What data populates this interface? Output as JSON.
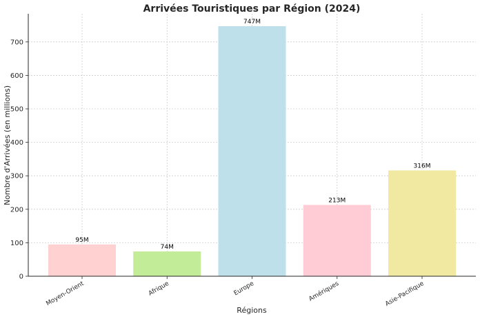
{
  "chart_data": {
    "type": "bar",
    "title": "Arrivées Touristiques par Région (2024)",
    "xlabel": "Régions",
    "ylabel": "Nombre d'Arrivées (en millions)",
    "categories": [
      "Moyen-Orient",
      "Afrique",
      "Europe",
      "Amériques",
      "Asie-Pacifique"
    ],
    "values": [
      95,
      74,
      747,
      213,
      316
    ],
    "value_labels": [
      "95M",
      "74M",
      "747M",
      "213M",
      "316M"
    ],
    "colors": [
      "#ffd1d1",
      "#c2ec97",
      "#bde0eb",
      "#ffccd6",
      "#f1e8a2"
    ],
    "ylim": [
      0,
      784
    ],
    "yticks": [
      0,
      100,
      200,
      300,
      400,
      500,
      600,
      700
    ],
    "grid": true,
    "legend": "none"
  }
}
